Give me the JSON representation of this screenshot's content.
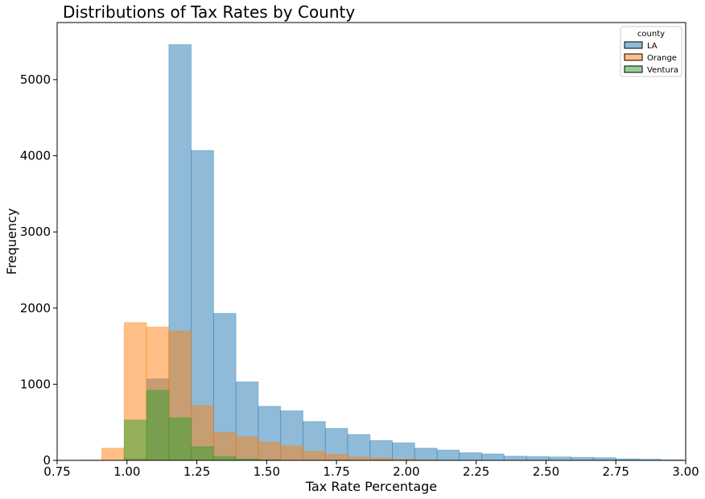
{
  "chart_data": {
    "type": "bar",
    "title": "Distributions of Tax Rates by County",
    "xlabel": "Tax Rate Percentage",
    "ylabel": "Frequency",
    "xlim": [
      0.75,
      3.0
    ],
    "ylim": [
      0,
      5750
    ],
    "bin_width": 0.08,
    "x_ticks": [
      0.75,
      1.0,
      1.25,
      1.5,
      1.75,
      2.0,
      2.25,
      2.5,
      2.75,
      3.0
    ],
    "x_tick_labels": [
      "0.75",
      "1.00",
      "1.25",
      "1.50",
      "1.75",
      "2.00",
      "2.25",
      "2.50",
      "2.75",
      "3.00"
    ],
    "y_ticks": [
      0,
      1000,
      2000,
      3000,
      4000,
      5000
    ],
    "y_tick_labels": [
      "0",
      "1000",
      "2000",
      "3000",
      "4000",
      "5000"
    ],
    "grid": false,
    "legend": {
      "title": "county",
      "placement": "top-right",
      "entries": [
        "LA",
        "Orange",
        "Ventura"
      ]
    },
    "series": [
      {
        "name": "LA",
        "color": "#1f77b4",
        "bins": [
          {
            "x": 0.99,
            "y": 20
          },
          {
            "x": 1.07,
            "y": 1070
          },
          {
            "x": 1.15,
            "y": 5460
          },
          {
            "x": 1.23,
            "y": 4070
          },
          {
            "x": 1.31,
            "y": 1930
          },
          {
            "x": 1.39,
            "y": 1030
          },
          {
            "x": 1.47,
            "y": 710
          },
          {
            "x": 1.55,
            "y": 650
          },
          {
            "x": 1.63,
            "y": 510
          },
          {
            "x": 1.71,
            "y": 420
          },
          {
            "x": 1.79,
            "y": 340
          },
          {
            "x": 1.87,
            "y": 260
          },
          {
            "x": 1.95,
            "y": 230
          },
          {
            "x": 2.03,
            "y": 160
          },
          {
            "x": 2.11,
            "y": 135
          },
          {
            "x": 2.19,
            "y": 100
          },
          {
            "x": 2.27,
            "y": 85
          },
          {
            "x": 2.35,
            "y": 55
          },
          {
            "x": 2.43,
            "y": 50
          },
          {
            "x": 2.51,
            "y": 45
          },
          {
            "x": 2.59,
            "y": 40
          },
          {
            "x": 2.67,
            "y": 35
          },
          {
            "x": 2.75,
            "y": 20
          },
          {
            "x": 2.83,
            "y": 15
          },
          {
            "x": 2.91,
            "y": 8
          }
        ]
      },
      {
        "name": "Orange",
        "color": "#ff7f0e",
        "bins": [
          {
            "x": 0.83,
            "y": 5
          },
          {
            "x": 0.91,
            "y": 160
          },
          {
            "x": 0.99,
            "y": 1810
          },
          {
            "x": 1.07,
            "y": 1750
          },
          {
            "x": 1.15,
            "y": 1700
          },
          {
            "x": 1.23,
            "y": 720
          },
          {
            "x": 1.31,
            "y": 370
          },
          {
            "x": 1.39,
            "y": 310
          },
          {
            "x": 1.47,
            "y": 240
          },
          {
            "x": 1.55,
            "y": 190
          },
          {
            "x": 1.63,
            "y": 120
          },
          {
            "x": 1.71,
            "y": 80
          },
          {
            "x": 1.79,
            "y": 45
          },
          {
            "x": 1.87,
            "y": 30
          },
          {
            "x": 1.95,
            "y": 15
          },
          {
            "x": 2.03,
            "y": 8
          }
        ]
      },
      {
        "name": "Ventura",
        "color": "#2ca02c",
        "bins": [
          {
            "x": 0.99,
            "y": 530
          },
          {
            "x": 1.07,
            "y": 920
          },
          {
            "x": 1.15,
            "y": 560
          },
          {
            "x": 1.23,
            "y": 180
          },
          {
            "x": 1.31,
            "y": 50
          },
          {
            "x": 1.39,
            "y": 20
          },
          {
            "x": 1.47,
            "y": 8
          }
        ]
      }
    ]
  }
}
